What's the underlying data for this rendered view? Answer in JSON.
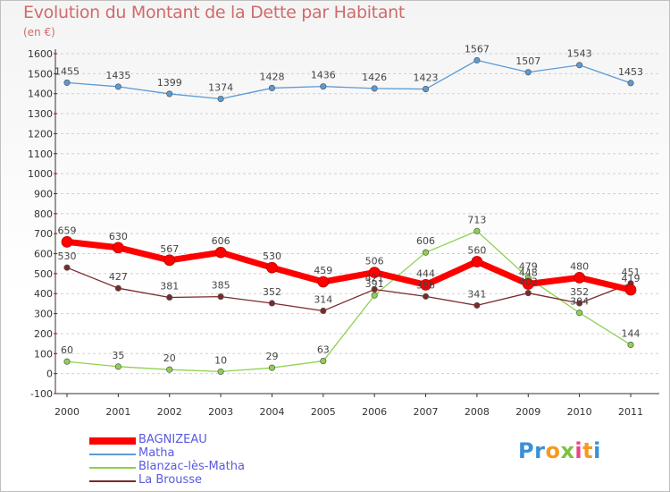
{
  "chart_data": {
    "type": "line",
    "title": "Evolution du Montant de la Dette par Habitant",
    "subtitle": "(en €)",
    "x": [
      "2000",
      "2001",
      "2002",
      "2003",
      "2004",
      "2005",
      "2006",
      "2007",
      "2008",
      "2009",
      "2010",
      "2011"
    ],
    "ylim": [
      -100,
      1600
    ],
    "yticks": [
      -100,
      0,
      100,
      200,
      300,
      400,
      500,
      600,
      700,
      800,
      900,
      1000,
      1100,
      1200,
      1300,
      1400,
      1500,
      1600
    ],
    "grid": "horizontal dashed",
    "legend_position": "bottom-left",
    "series": [
      {
        "name": "BAGNIZEAU",
        "color": "#ff0000",
        "values": [
          659,
          630,
          567,
          606,
          530,
          459,
          506,
          444,
          560,
          448,
          480,
          419
        ]
      },
      {
        "name": "Matha",
        "color": "#5b9bd5",
        "values": [
          1455,
          1435,
          1399,
          1374,
          1428,
          1436,
          1426,
          1423,
          1567,
          1507,
          1543,
          1453
        ]
      },
      {
        "name": "Blanzac-lès-Matha",
        "color": "#8fd14f",
        "values": [
          60,
          35,
          20,
          10,
          29,
          63,
          391,
          606,
          713,
          479,
          304,
          144
        ]
      },
      {
        "name": "La Brousse",
        "color": "#7b2a2a",
        "values": [
          530,
          427,
          381,
          385,
          352,
          314,
          421,
          386,
          341,
          403,
          352,
          451
        ]
      }
    ]
  },
  "logo": {
    "text": "Proxiti"
  }
}
